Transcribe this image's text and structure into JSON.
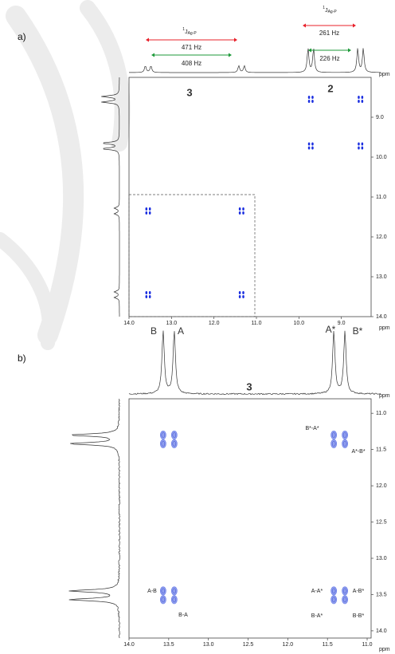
{
  "chart_data": [
    {
      "type": "scatter",
      "panel_label": "a)",
      "color": "#1a2ee0",
      "xlabel": "ppm",
      "ylabel": "ppm",
      "xlim": [
        14.0,
        8.3
      ],
      "ylim": [
        8.0,
        14.0
      ],
      "xticks": [
        {
          "value": 14,
          "label": "14.0"
        },
        {
          "value": 13,
          "label": "13.0"
        },
        {
          "value": 12,
          "label": "12.0"
        },
        {
          "value": 11,
          "label": "11.0"
        },
        {
          "value": 10,
          "label": "10.0"
        },
        {
          "value": 9,
          "label": "9.0"
        }
      ],
      "yticks": [
        {
          "value": 9,
          "label": "9.0"
        },
        {
          "value": 10,
          "label": "10.0"
        },
        {
          "value": 11,
          "label": "11.0"
        },
        {
          "value": 12,
          "label": "12.0"
        },
        {
          "value": 13,
          "label": "13.0"
        },
        {
          "value": 14,
          "label": "14.0"
        }
      ],
      "x": [
        13.55,
        11.35,
        13.55,
        11.35,
        9.72,
        8.55,
        9.72,
        8.55
      ],
      "values": [
        11.35,
        11.35,
        13.45,
        13.45,
        8.55,
        8.55,
        9.72,
        9.72
      ],
      "compound_labels": [
        "3",
        "2"
      ],
      "coupling_symbols": [
        {
          "sup": "1",
          "main": "J",
          "sub": "Ag-P"
        },
        {
          "sup": "1",
          "main": "J",
          "sub": "Ag-P"
        }
      ],
      "couplings": [
        {
          "text": "471 Hz",
          "color": "#e8202a"
        },
        {
          "text": "408 Hz",
          "color": "#1e9a3a"
        },
        {
          "text": "261 Hz",
          "color": "#e8202a"
        },
        {
          "text": "226 Hz",
          "color": "#1e9a3a"
        }
      ]
    },
    {
      "type": "scatter",
      "panel_label": "b)",
      "color": "#6a7de8",
      "xlabel": "ppm",
      "ylabel": "ppm",
      "xlim": [
        14.0,
        10.95
      ],
      "ylim": [
        10.8,
        14.1
      ],
      "xticks": [
        {
          "value": 14,
          "label": "14.0"
        },
        13.5,
        {
          "value": 13,
          "label": "13.0"
        },
        12.5,
        {
          "value": 12,
          "label": "12.0"
        },
        11.5,
        {
          "value": 11,
          "label": "11.0"
        }
      ],
      "yticks": [
        {
          "value": 11,
          "label": "11.0"
        },
        11.5,
        {
          "value": 12,
          "label": "12.0"
        },
        12.5,
        {
          "value": 13,
          "label": "13.0"
        },
        13.5,
        {
          "value": 14,
          "label": "14.0"
        }
      ],
      "x": [
        13.57,
        13.43,
        13.57,
        13.43,
        11.42,
        11.28,
        11.42,
        11.28,
        13.57,
        13.43,
        13.57,
        13.43,
        11.42,
        11.28,
        11.42,
        11.28
      ],
      "values": [
        11.3,
        11.3,
        11.42,
        11.42,
        11.3,
        11.3,
        11.42,
        11.42,
        13.45,
        13.45,
        13.57,
        13.57,
        13.45,
        13.45,
        13.57,
        13.57
      ],
      "compound_labels": [
        "3"
      ],
      "projection_labels": [
        "B",
        "A",
        "A*",
        "B*"
      ],
      "peak_labels": [
        "B*-A*",
        "A*-B*",
        "A-B",
        "B-A",
        "A-A*",
        "A-B*",
        "B-A*",
        "B-B*"
      ]
    }
  ]
}
